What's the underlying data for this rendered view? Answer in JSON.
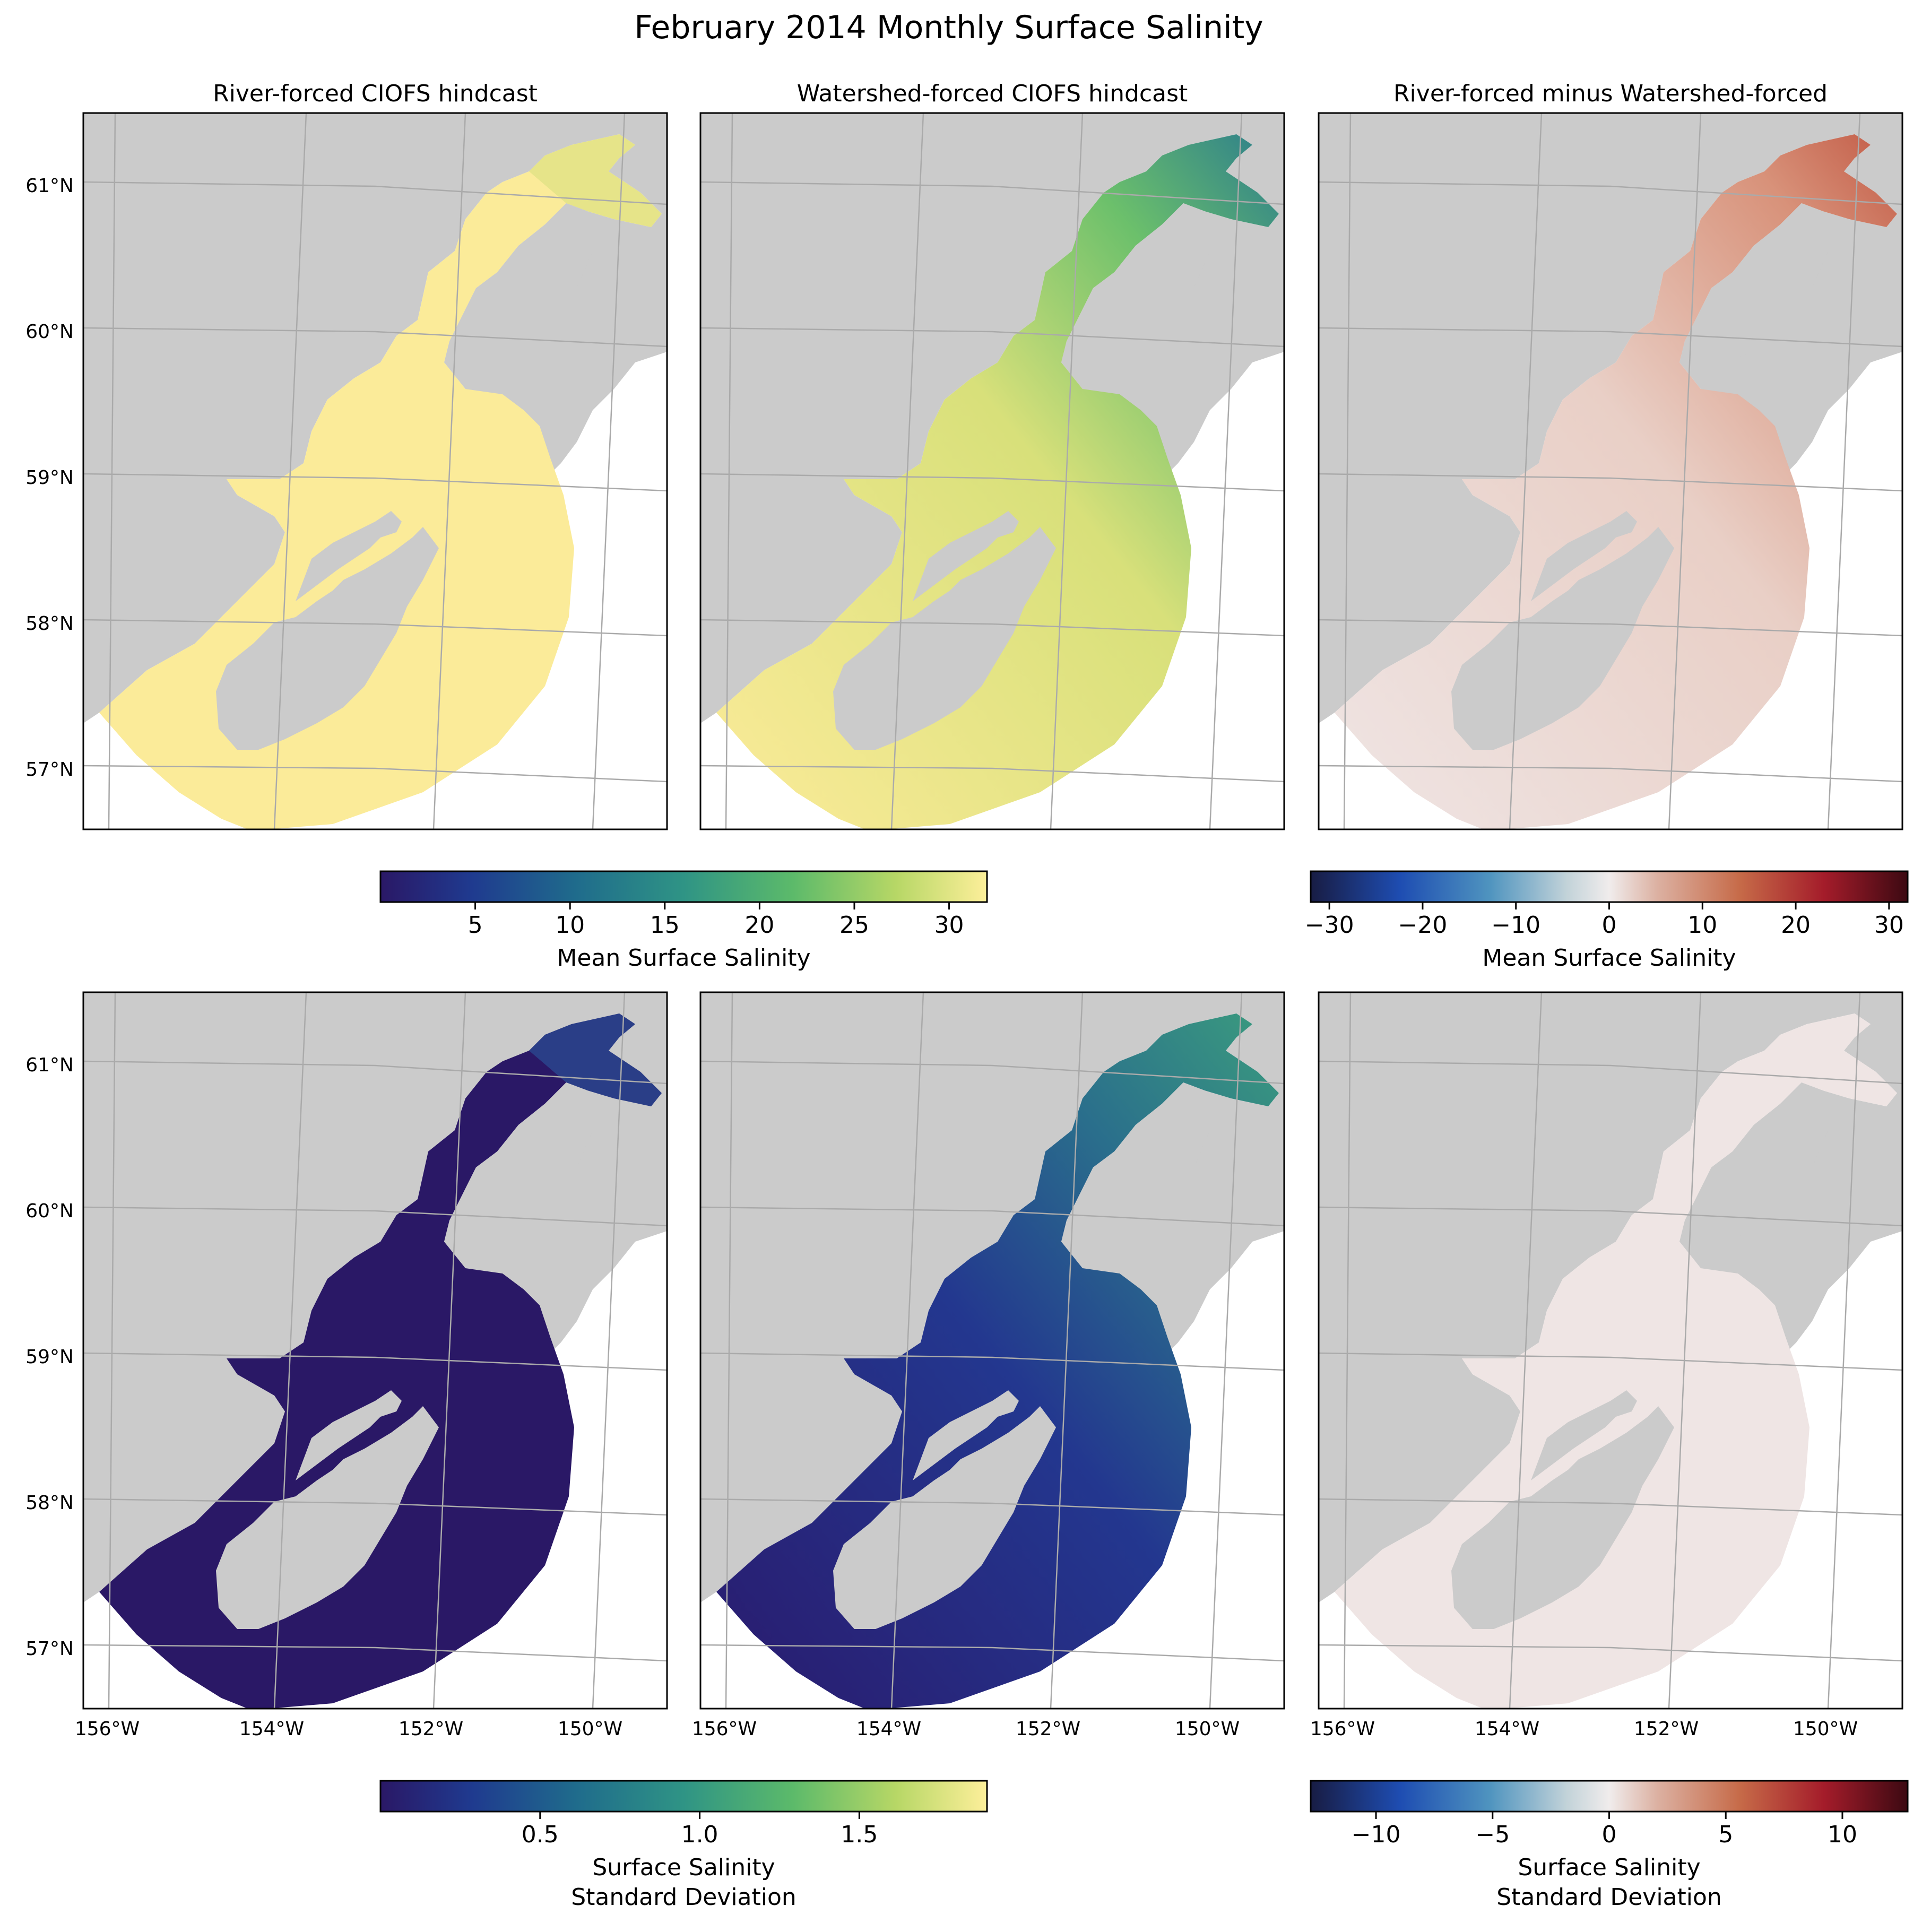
{
  "figure": {
    "title": "February 2014 Monthly Surface Salinity"
  },
  "colors": {
    "land": "#cbcbcb",
    "water_mean_high": "#fbeb99",
    "haline_low": "#2a1866",
    "diff_neutral": "#efe5e4",
    "grid": "#aaaaaa"
  },
  "chart_data": [
    {
      "type": "heatmap",
      "panel": "top-left",
      "title": "River-forced CIOFS hindcast",
      "variable": "Mean Surface Salinity",
      "colormap": "haline",
      "yticks": [
        "61°N",
        "60°N",
        "59°N",
        "58°N",
        "57°N"
      ],
      "xticks": []
    },
    {
      "type": "heatmap",
      "panel": "top-middle",
      "title": "Watershed-forced CIOFS hindcast",
      "variable": "Mean Surface Salinity",
      "colormap": "haline",
      "yticks": [],
      "xticks": []
    },
    {
      "type": "heatmap",
      "panel": "top-right",
      "title": "River-forced minus Watershed-forced",
      "variable": "Mean Surface Salinity",
      "colormap": "balance",
      "yticks": [],
      "xticks": []
    },
    {
      "type": "heatmap",
      "panel": "bottom-left",
      "title": "",
      "variable": "Surface Salinity Standard Deviation",
      "colormap": "haline",
      "yticks": [
        "61°N",
        "60°N",
        "59°N",
        "58°N",
        "57°N"
      ],
      "xticks": [
        "156°W",
        "154°W",
        "152°W",
        "150°W"
      ]
    },
    {
      "type": "heatmap",
      "panel": "bottom-middle",
      "title": "",
      "variable": "Surface Salinity Standard Deviation",
      "colormap": "haline",
      "yticks": [],
      "xticks": [
        "156°W",
        "154°W",
        "152°W",
        "150°W"
      ]
    },
    {
      "type": "heatmap",
      "panel": "bottom-right",
      "title": "",
      "variable": "Surface Salinity Standard Deviation",
      "colormap": "balance",
      "yticks": [],
      "xticks": [
        "156°W",
        "154°W",
        "152°W",
        "150°W"
      ]
    }
  ],
  "colorbars": [
    {
      "id": "cb-mean",
      "label_lines": [
        "Mean Surface Salinity"
      ],
      "range": [
        0,
        32
      ],
      "ticks": [
        5,
        10,
        15,
        20,
        25,
        30
      ],
      "tick_labels": [
        "5",
        "10",
        "15",
        "20",
        "25",
        "30"
      ],
      "colormap": "haline"
    },
    {
      "id": "cb-mean-diff",
      "label_lines": [
        "Mean Surface Salinity"
      ],
      "range": [
        -32,
        32
      ],
      "ticks": [
        -30,
        -20,
        -10,
        0,
        10,
        20,
        30
      ],
      "tick_labels": [
        "−30",
        "−20",
        "−10",
        "0",
        "10",
        "20",
        "30"
      ],
      "colormap": "balance"
    },
    {
      "id": "cb-std",
      "label_lines": [
        "Surface Salinity",
        "Standard Deviation"
      ],
      "range": [
        0,
        1.9
      ],
      "ticks": [
        0.5,
        1.0,
        1.5
      ],
      "tick_labels": [
        "0.5",
        "1.0",
        "1.5"
      ],
      "colormap": "haline"
    },
    {
      "id": "cb-std-diff",
      "label_lines": [
        "Surface Salinity",
        "Standard Deviation"
      ],
      "range": [
        -12.8,
        12.8
      ],
      "ticks": [
        -10,
        -5,
        0,
        5,
        10
      ],
      "tick_labels": [
        "−10",
        "−5",
        "0",
        "5",
        "10"
      ],
      "colormap": "balance"
    }
  ]
}
